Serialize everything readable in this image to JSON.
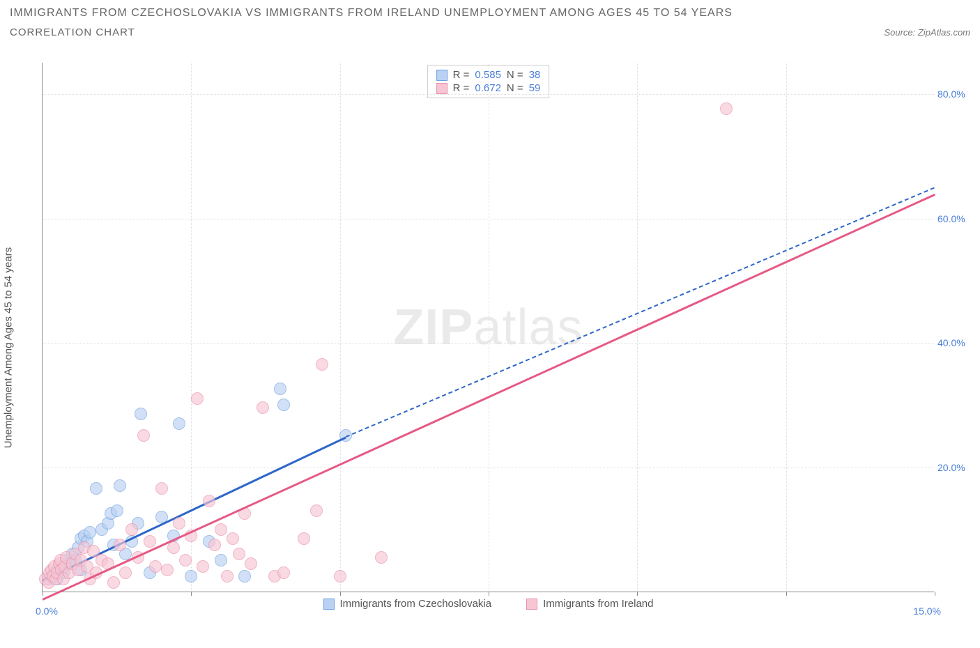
{
  "header": {
    "title": "IMMIGRANTS FROM CZECHOSLOVAKIA VS IMMIGRANTS FROM IRELAND UNEMPLOYMENT AMONG AGES 45 TO 54 YEARS",
    "subtitle": "CORRELATION CHART",
    "source": "Source: ZipAtlas.com"
  },
  "chart": {
    "type": "scatter",
    "ylabel": "Unemployment Among Ages 45 to 54 years",
    "watermark_a": "ZIP",
    "watermark_b": "atlas",
    "background_color": "#ffffff",
    "grid_color": "#dddddd",
    "axis_color": "#888888",
    "tick_color": "#4a7fd8",
    "xlim": [
      0,
      15
    ],
    "ylim": [
      0,
      85
    ],
    "x_tick_left": "0.0%",
    "x_tick_right": "15.0%",
    "x_tick_positions": [
      0,
      2.5,
      5,
      7.5,
      10,
      12.5,
      15
    ],
    "y_ticks": [
      {
        "v": 20,
        "label": "20.0%"
      },
      {
        "v": 40,
        "label": "40.0%"
      },
      {
        "v": 60,
        "label": "60.0%"
      },
      {
        "v": 80,
        "label": "80.0%"
      }
    ],
    "series": [
      {
        "key": "czech",
        "label": "Immigrants from Czechoslovakia",
        "fill": "#b9d1f2",
        "stroke": "#6f9fe0",
        "line_color": "#2e67c9",
        "r_label": "R = ",
        "r_value": "0.585",
        "n_label": "   N = ",
        "n_value": "38",
        "trend": {
          "x1": 0,
          "y1": 2,
          "x2": 5.1,
          "y2": 25,
          "dash_x2": 15,
          "dash_y2": 65
        },
        "points": [
          {
            "x": 0.1,
            "y": 2
          },
          {
            "x": 0.15,
            "y": 2.5
          },
          {
            "x": 0.2,
            "y": 3
          },
          {
            "x": 0.25,
            "y": 2
          },
          {
            "x": 0.3,
            "y": 4
          },
          {
            "x": 0.35,
            "y": 3
          },
          {
            "x": 0.4,
            "y": 5
          },
          {
            "x": 0.45,
            "y": 4.5
          },
          {
            "x": 0.5,
            "y": 6
          },
          {
            "x": 0.55,
            "y": 5
          },
          {
            "x": 0.6,
            "y": 7
          },
          {
            "x": 0.65,
            "y": 8.5
          },
          {
            "x": 0.65,
            "y": 3.5
          },
          {
            "x": 0.7,
            "y": 9
          },
          {
            "x": 0.75,
            "y": 8
          },
          {
            "x": 0.8,
            "y": 9.5
          },
          {
            "x": 0.9,
            "y": 16.5
          },
          {
            "x": 1.0,
            "y": 10
          },
          {
            "x": 1.1,
            "y": 11
          },
          {
            "x": 1.15,
            "y": 12.5
          },
          {
            "x": 1.2,
            "y": 7.5
          },
          {
            "x": 1.25,
            "y": 13
          },
          {
            "x": 1.3,
            "y": 17
          },
          {
            "x": 1.4,
            "y": 6
          },
          {
            "x": 1.5,
            "y": 8
          },
          {
            "x": 1.6,
            "y": 11
          },
          {
            "x": 1.65,
            "y": 28.5
          },
          {
            "x": 1.8,
            "y": 3
          },
          {
            "x": 2.0,
            "y": 12
          },
          {
            "x": 2.2,
            "y": 9
          },
          {
            "x": 2.3,
            "y": 27
          },
          {
            "x": 2.5,
            "y": 2.5
          },
          {
            "x": 2.8,
            "y": 8
          },
          {
            "x": 3.0,
            "y": 5
          },
          {
            "x": 3.4,
            "y": 2.5
          },
          {
            "x": 4.0,
            "y": 32.5
          },
          {
            "x": 4.05,
            "y": 30
          },
          {
            "x": 5.1,
            "y": 25
          }
        ]
      },
      {
        "key": "ireland",
        "label": "Immigrants from Ireland",
        "fill": "#f7c6d3",
        "stroke": "#e98fac",
        "line_color": "#e65a85",
        "r_label": "R = ",
        "r_value": "0.672",
        "n_label": "   N = ",
        "n_value": "59",
        "trend": {
          "x1": 0,
          "y1": -1,
          "x2": 15,
          "y2": 64
        },
        "points": [
          {
            "x": 0.05,
            "y": 2
          },
          {
            "x": 0.1,
            "y": 1.5
          },
          {
            "x": 0.12,
            "y": 3
          },
          {
            "x": 0.15,
            "y": 3.5
          },
          {
            "x": 0.18,
            "y": 2.5
          },
          {
            "x": 0.2,
            "y": 4
          },
          {
            "x": 0.22,
            "y": 2
          },
          {
            "x": 0.25,
            "y": 3
          },
          {
            "x": 0.28,
            "y": 4.5
          },
          {
            "x": 0.3,
            "y": 5
          },
          {
            "x": 0.32,
            "y": 3.5
          },
          {
            "x": 0.35,
            "y": 2
          },
          {
            "x": 0.38,
            "y": 4
          },
          {
            "x": 0.4,
            "y": 5.5
          },
          {
            "x": 0.45,
            "y": 3
          },
          {
            "x": 0.5,
            "y": 4.5
          },
          {
            "x": 0.55,
            "y": 6
          },
          {
            "x": 0.6,
            "y": 3.5
          },
          {
            "x": 0.65,
            "y": 5
          },
          {
            "x": 0.7,
            "y": 7
          },
          {
            "x": 0.75,
            "y": 4
          },
          {
            "x": 0.8,
            "y": 2
          },
          {
            "x": 0.85,
            "y": 6.5
          },
          {
            "x": 0.9,
            "y": 3
          },
          {
            "x": 1.0,
            "y": 5
          },
          {
            "x": 1.1,
            "y": 4.5
          },
          {
            "x": 1.2,
            "y": 1.5
          },
          {
            "x": 1.3,
            "y": 7.5
          },
          {
            "x": 1.4,
            "y": 3
          },
          {
            "x": 1.5,
            "y": 10
          },
          {
            "x": 1.6,
            "y": 5.5
          },
          {
            "x": 1.7,
            "y": 25
          },
          {
            "x": 1.8,
            "y": 8
          },
          {
            "x": 1.9,
            "y": 4
          },
          {
            "x": 2.0,
            "y": 16.5
          },
          {
            "x": 2.1,
            "y": 3.5
          },
          {
            "x": 2.2,
            "y": 7
          },
          {
            "x": 2.3,
            "y": 11
          },
          {
            "x": 2.4,
            "y": 5
          },
          {
            "x": 2.5,
            "y": 9
          },
          {
            "x": 2.6,
            "y": 31
          },
          {
            "x": 2.7,
            "y": 4
          },
          {
            "x": 2.8,
            "y": 14.5
          },
          {
            "x": 2.9,
            "y": 7.5
          },
          {
            "x": 3.0,
            "y": 10
          },
          {
            "x": 3.1,
            "y": 2.5
          },
          {
            "x": 3.2,
            "y": 8.5
          },
          {
            "x": 3.3,
            "y": 6
          },
          {
            "x": 3.4,
            "y": 12.5
          },
          {
            "x": 3.5,
            "y": 4.5
          },
          {
            "x": 3.7,
            "y": 29.5
          },
          {
            "x": 3.9,
            "y": 2.5
          },
          {
            "x": 4.05,
            "y": 3
          },
          {
            "x": 4.4,
            "y": 8.5
          },
          {
            "x": 4.6,
            "y": 13
          },
          {
            "x": 4.7,
            "y": 36.5
          },
          {
            "x": 5.0,
            "y": 2.5
          },
          {
            "x": 5.7,
            "y": 5.5
          },
          {
            "x": 11.5,
            "y": 77.5
          }
        ]
      }
    ]
  }
}
